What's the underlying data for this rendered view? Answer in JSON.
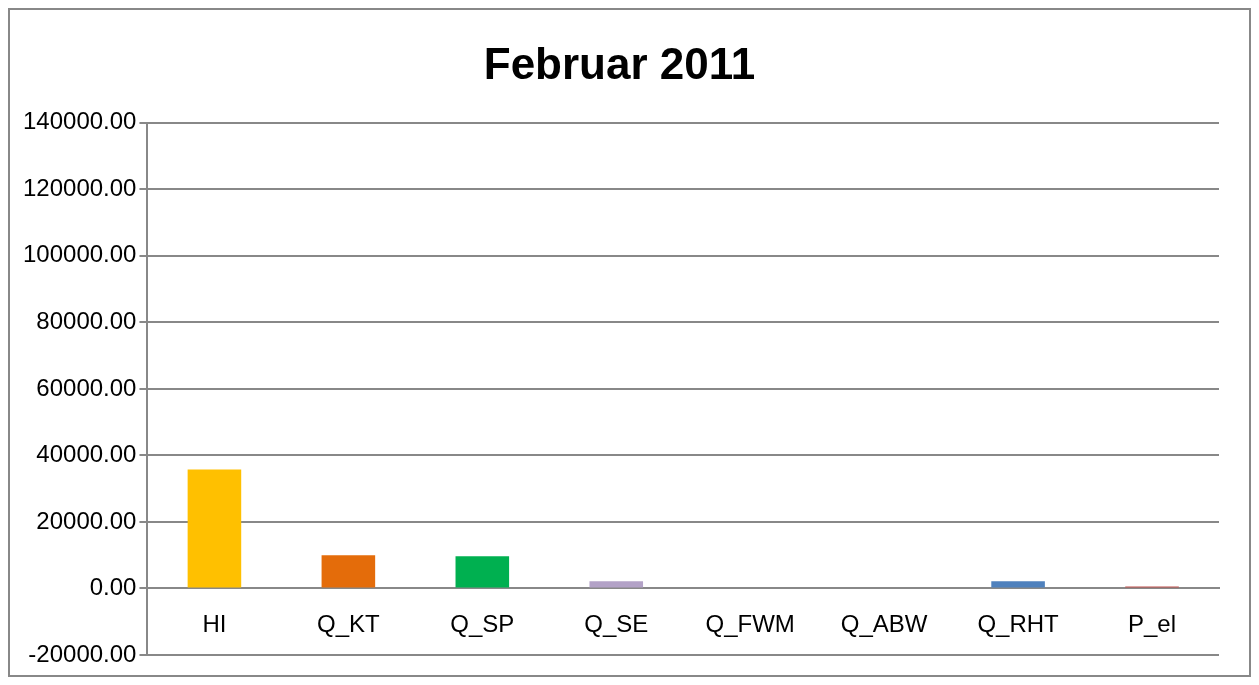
{
  "chart_data": {
    "type": "bar",
    "title": "Februar 2011",
    "categories": [
      "HI",
      "Q_KT",
      "Q_SP",
      "Q_SE",
      "Q_FWM",
      "Q_ABW",
      "Q_RHT",
      "P_el"
    ],
    "values": [
      35800,
      10000,
      9700,
      2200,
      0,
      0,
      2200,
      600
    ],
    "colors": [
      "#ffc000",
      "#e46c0a",
      "#00b050",
      "#b3a2c7",
      "#4bacc6",
      "#8064a2",
      "#4f81bd",
      "#c0504d"
    ],
    "ylim": [
      -20000,
      140000
    ],
    "yticks": [
      {
        "value": -20000,
        "label": "-20000.00"
      },
      {
        "value": 0,
        "label": "0.00"
      },
      {
        "value": 20000,
        "label": "20000.00"
      },
      {
        "value": 40000,
        "label": "40000.00"
      },
      {
        "value": 60000,
        "label": "60000.00"
      },
      {
        "value": 80000,
        "label": "80000.00"
      },
      {
        "value": 100000,
        "label": "100000.00"
      },
      {
        "value": 120000,
        "label": "120000.00"
      },
      {
        "value": 140000,
        "label": "140000.00"
      }
    ],
    "grid": "y",
    "legend": false
  }
}
